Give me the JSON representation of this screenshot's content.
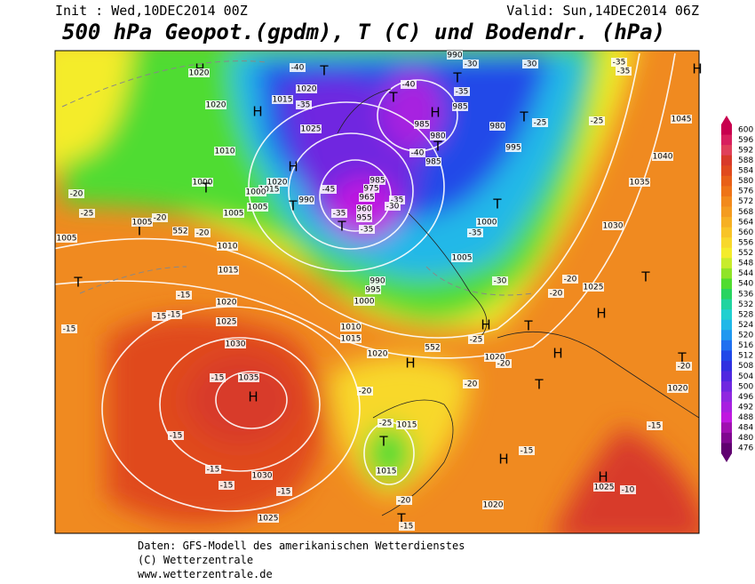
{
  "header": {
    "init": "Init : Wed,10DEC2014 00Z",
    "valid": "Valid: Sun,14DEC2014 06Z",
    "title": "500 hPa Geopot.(gpdm), T (C) und Bodendr. (hPa)"
  },
  "footer": [
    "Daten: GFS-Modell des amerikanischen Wetterdienstes",
    "(C) Wetterzentrale",
    "www.wetterzentrale.de"
  ],
  "colorbar": {
    "levels": [
      600,
      596,
      592,
      588,
      584,
      580,
      576,
      572,
      568,
      564,
      560,
      556,
      552,
      548,
      544,
      540,
      536,
      532,
      528,
      524,
      520,
      516,
      512,
      508,
      504,
      500,
      496,
      492,
      488,
      484,
      480,
      476
    ],
    "colors": [
      "#c8004e",
      "#d8205e",
      "#e0405a",
      "#d83a2a",
      "#e04a1e",
      "#e86018",
      "#ee7418",
      "#f28a1c",
      "#f49c20",
      "#f6b024",
      "#f8c428",
      "#f8d82c",
      "#f4ec2c",
      "#c8ec2c",
      "#90e428",
      "#50dc30",
      "#28d460",
      "#20d4a0",
      "#20d0d0",
      "#20b8e8",
      "#2098f0",
      "#2070f0",
      "#2048e8",
      "#3030e0",
      "#5028e0",
      "#7028e0",
      "#9028e0",
      "#a820e0",
      "#c018e0",
      "#a010b0",
      "#800890",
      "#600070"
    ]
  },
  "map_labels": [
    "H",
    "1020",
    "T",
    "-40",
    "1020",
    "1015",
    "-35",
    "H",
    "1025",
    "1020",
    "T",
    "-40",
    "H",
    "990",
    "-35",
    "985",
    "T",
    "985",
    "980",
    "T",
    "-40",
    "985",
    "-30",
    "-30",
    "T",
    "980",
    "-25",
    "995",
    "H",
    "1020",
    "1015",
    "T",
    "990",
    "-45",
    "985",
    "975",
    "965",
    "960",
    "955",
    "-35",
    "-30",
    "-35",
    "-35",
    "T",
    "1000",
    "1005",
    "1005",
    "1010",
    "1000",
    "T",
    "-20",
    "-25",
    "T",
    "1005",
    "1005",
    "-20",
    "552",
    "-20",
    "1010",
    "1015",
    "1020",
    "1025",
    "1030",
    "T",
    "-15",
    "-15",
    "-15",
    "-15",
    "-15",
    "1035",
    "H",
    "-15",
    "-15",
    "1030",
    "-15",
    "-15",
    "1025",
    "1040",
    "1035",
    "1045",
    "H",
    "-35",
    "-35",
    "-25",
    "T",
    "1000",
    "-35",
    "1030",
    "1005",
    "990",
    "995",
    "1000",
    "-30",
    "-20",
    "1025",
    "T",
    "-20",
    "H",
    "1010",
    "1015",
    "552",
    "H",
    "T",
    "-25",
    "1020",
    "H",
    "1020",
    "-20",
    "H",
    "T",
    "-20",
    "-20",
    "T",
    "1020",
    "-20",
    "1015",
    "-25",
    "T",
    "1015",
    "-15",
    "H",
    "-15",
    "H",
    "1025",
    "-10",
    "-20",
    "1020",
    "T",
    "-15"
  ]
}
